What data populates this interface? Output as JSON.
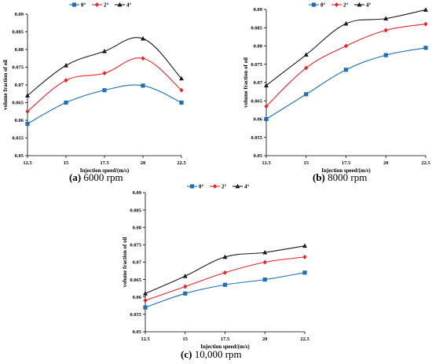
{
  "captions": [
    {
      "tag": "(a)",
      "text": "6000 rpm"
    },
    {
      "tag": "(b)",
      "text": "8000 rpm"
    },
    {
      "tag": "(c)",
      "text": "10,000 rpm"
    }
  ],
  "colors": {
    "0°": "#1f6fb5",
    "2°": "#e8262a",
    "4°": "#1a1a1a"
  },
  "chart_data": [
    {
      "type": "line",
      "xlabel": "Injection speed/(m/s)",
      "ylabel": "volume fraction of oil",
      "x": [
        "12.5",
        "15",
        "17.5",
        "20",
        "22.5"
      ],
      "ylim": [
        0.05,
        0.09
      ],
      "yticks": [
        "0.05",
        "0.055",
        "0.06",
        "0.065",
        "0.07",
        "0.075",
        "0.08",
        "0.085",
        "0.09"
      ],
      "legend_position": "top-center",
      "series": [
        {
          "name": "0°",
          "values": [
            0.059,
            0.065,
            0.0685,
            0.0698,
            0.065
          ]
        },
        {
          "name": "2°",
          "values": [
            0.0625,
            0.0713,
            0.0733,
            0.0775,
            0.0685
          ]
        },
        {
          "name": "4°",
          "values": [
            0.067,
            0.0755,
            0.0795,
            0.0831,
            0.0718
          ]
        }
      ]
    },
    {
      "type": "line",
      "xlabel": "Injection speed/(m/s)",
      "ylabel": "volume fraction of oil",
      "x": [
        "12.5",
        "15",
        "17.5",
        "20",
        "22.5"
      ],
      "ylim": [
        0.05,
        0.09
      ],
      "yticks": [
        "0.05",
        "0.055",
        "0.06",
        "0.065",
        "0.07",
        "0.075",
        "0.08",
        "0.085",
        "0.09"
      ],
      "legend_position": "top-center",
      "series": [
        {
          "name": "0°",
          "values": [
            0.06,
            0.0668,
            0.0735,
            0.0775,
            0.0795
          ]
        },
        {
          "name": "2°",
          "values": [
            0.0635,
            0.074,
            0.08,
            0.0843,
            0.086
          ]
        },
        {
          "name": "4°",
          "values": [
            0.0692,
            0.0776,
            0.0861,
            0.0875,
            0.0899
          ]
        }
      ]
    },
    {
      "type": "line",
      "xlabel": "Injection speed/(m/s)",
      "ylabel": "volume fraction of oil",
      "x": [
        "12.5",
        "15",
        "17.5",
        "20",
        "22.5"
      ],
      "ylim": [
        0.05,
        0.09
      ],
      "yticks": [
        "0.05",
        "0.055",
        "0.06",
        "0.065",
        "0.07",
        "0.075",
        "0.08",
        "0.085",
        "0.09"
      ],
      "legend_position": "top-center",
      "series": [
        {
          "name": "0°",
          "values": [
            0.057,
            0.061,
            0.0635,
            0.065,
            0.067
          ]
        },
        {
          "name": "2°",
          "values": [
            0.059,
            0.063,
            0.067,
            0.07,
            0.0715
          ]
        },
        {
          "name": "4°",
          "values": [
            0.061,
            0.066,
            0.0715,
            0.0728,
            0.0747
          ]
        }
      ]
    }
  ]
}
